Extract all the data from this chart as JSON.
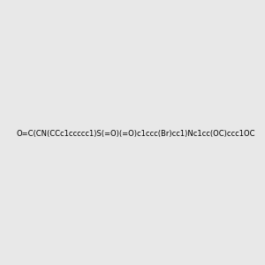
{
  "smiles": "O=C(CN(CCc1ccccc1)S(=O)(=O)c1ccc(Br)cc1)Nc1cc(OC)ccc1OC",
  "image_size": 300,
  "background_color": "#e8e8e8"
}
